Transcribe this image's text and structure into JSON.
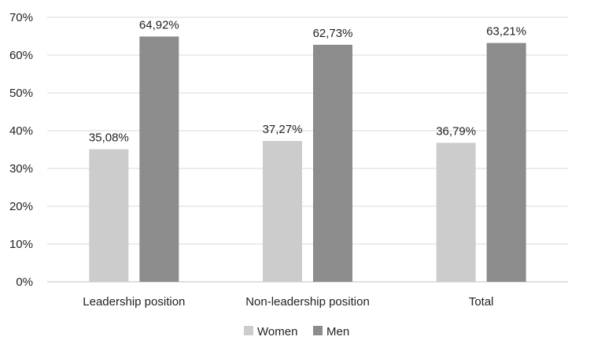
{
  "chart_data": {
    "type": "bar",
    "title": "",
    "xlabel": "",
    "ylabel": "",
    "categories": [
      "Leadership position",
      "Non-leadership position",
      "Total"
    ],
    "series": [
      {
        "name": "Women",
        "color": "#cccccc",
        "values": [
          35.08,
          37.27,
          36.79
        ],
        "labels": [
          "35,08%",
          "37,27%",
          "36,79%"
        ]
      },
      {
        "name": "Men",
        "color": "#8c8c8c",
        "values": [
          64.92,
          62.73,
          63.21
        ],
        "labels": [
          "64,92%",
          "62,73%",
          "63,21%"
        ]
      }
    ],
    "ylim": [
      0,
      70
    ],
    "yticks": [
      0,
      10,
      20,
      30,
      40,
      50,
      60,
      70
    ],
    "ytick_labels": [
      "0%",
      "10%",
      "20%",
      "30%",
      "40%",
      "50%",
      "60%",
      "70%"
    ],
    "grid": true,
    "gridline_color": "#d9d9d9",
    "legend_position": "bottom"
  }
}
